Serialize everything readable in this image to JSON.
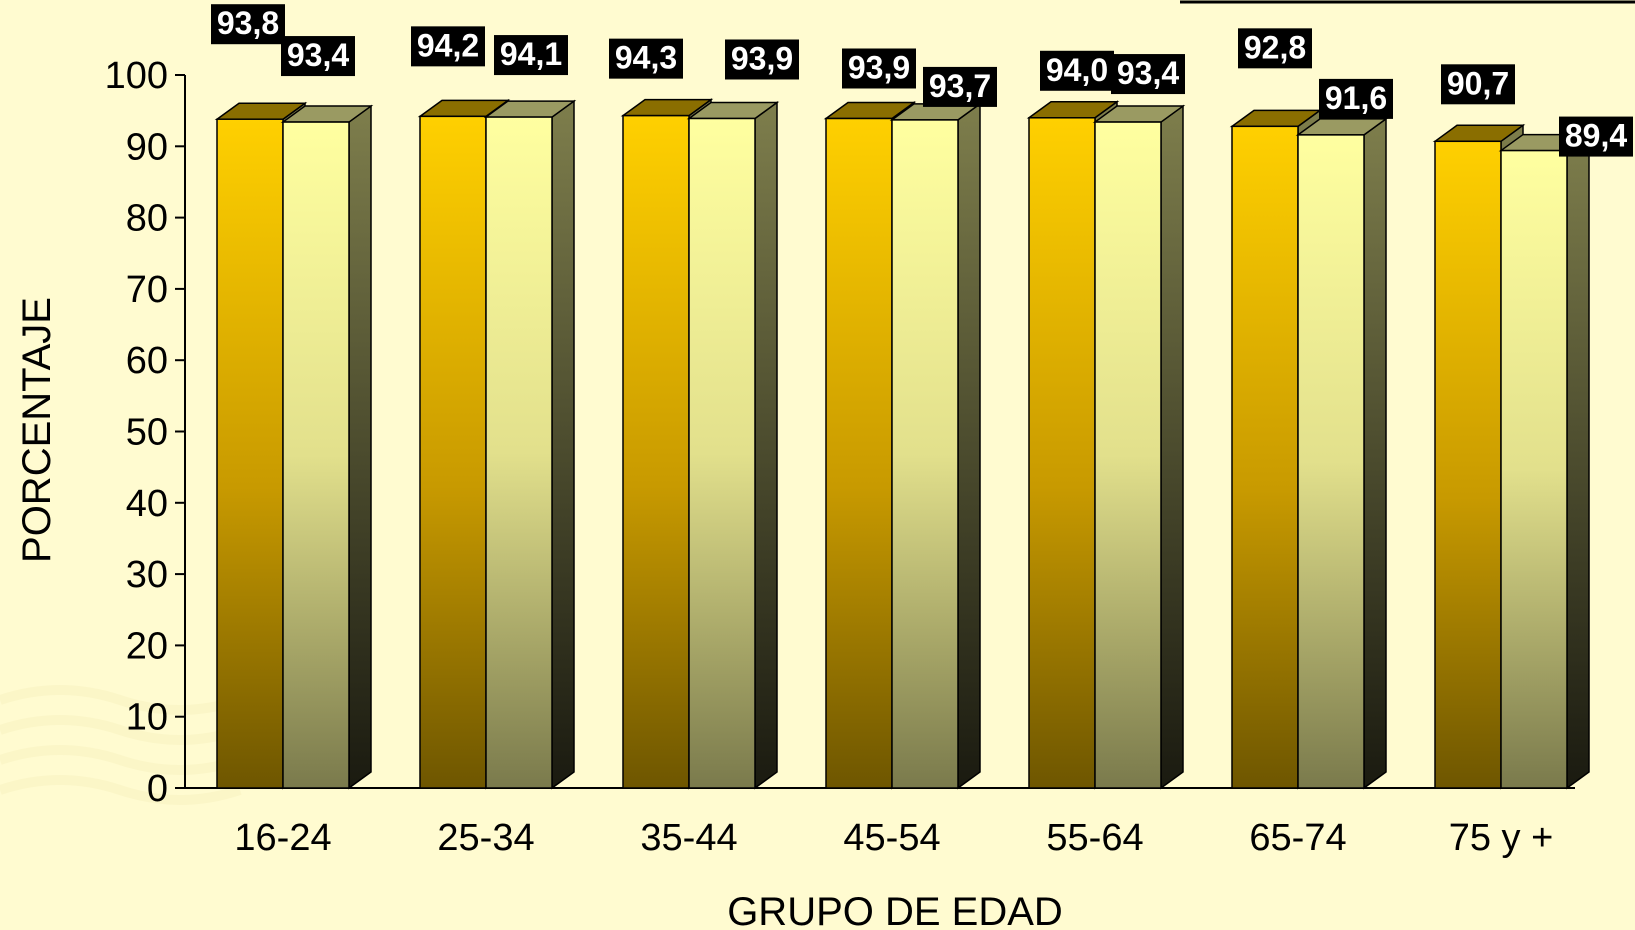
{
  "chart_data": {
    "type": "bar",
    "categories": [
      "16-24",
      "25-34",
      "35-44",
      "45-54",
      "55-64",
      "65-74",
      "75 y +"
    ],
    "series": [
      {
        "values": [
          93.8,
          94.2,
          94.3,
          93.9,
          94.0,
          92.8,
          90.7
        ]
      },
      {
        "values": [
          93.4,
          94.1,
          93.9,
          93.7,
          93.4,
          91.6,
          89.4
        ]
      }
    ],
    "value_labels": [
      [
        "93,8",
        "94,2",
        "94,3",
        "93,9",
        "94,0",
        "92,8",
        "90,7"
      ],
      [
        "93,4",
        "94,1",
        "93,9",
        "93,7",
        "93,4",
        "91,6",
        "89,4"
      ]
    ],
    "xlabel": "GRUPO DE EDAD",
    "ylabel": "PORCENTAJE",
    "ylim": [
      0,
      100
    ],
    "yticks": [
      0,
      10,
      20,
      30,
      40,
      50,
      60,
      70,
      80,
      90,
      100
    ],
    "grid": false,
    "legend": "none",
    "colors": {
      "series1_top": "#ffd000",
      "series1_bottom": "#6e5600",
      "series2_top": "#ffffa0",
      "series2_bottom": "#7a7a4c",
      "label_bg": "#000000",
      "background": "#fffbd0"
    }
  }
}
